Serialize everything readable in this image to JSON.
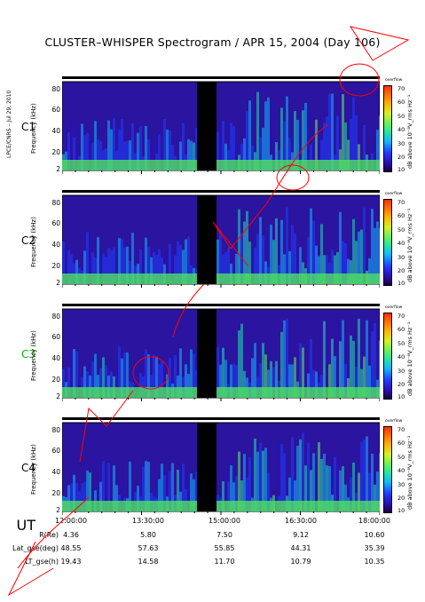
{
  "title": "CLUSTER–WHISPER Spectrogram / APR 15, 2004 (Day 106)",
  "side_note": "LPCE/CNRS – Jul 29, 2010",
  "colorbar": {
    "over_label": "overflow",
    "ticks": [
      "70",
      "60",
      "50",
      "40",
      "30",
      "20",
      "10"
    ],
    "label": "dB above 10⁻⁸V_rms Hz⁻¹"
  },
  "panels": [
    {
      "spacecraft": "C1",
      "ylabel": "Frequency (kHz)",
      "yticks": [
        "80",
        "60",
        "40",
        "20",
        "2"
      ],
      "label_color": "#000000"
    },
    {
      "spacecraft": "C2",
      "ylabel": "Frequency (kHz)",
      "yticks": [
        "80",
        "60",
        "40",
        "20",
        "2"
      ],
      "label_color": "#000000"
    },
    {
      "spacecraft": "C3",
      "ylabel": "Frequency (kHz)",
      "yticks": [
        "80",
        "60",
        "40",
        "20",
        "2"
      ],
      "label_color": "#00b000"
    },
    {
      "spacecraft": "C4",
      "ylabel": "Frequency (kHz)",
      "yticks": [
        "80",
        "60",
        "40",
        "20",
        "2"
      ],
      "label_color": "#000000"
    }
  ],
  "ephemeris": {
    "ut_label": "UT",
    "rows": [
      {
        "label": "R(Re)",
        "values": [
          "4.36",
          "5.80",
          "7.50",
          "9.12",
          "10.60"
        ]
      },
      {
        "label": "Lat_gse(deg)",
        "values": [
          "48.55",
          "57.63",
          "55.85",
          "44.31",
          "35.39"
        ]
      },
      {
        "label": "LT_gse(h)",
        "values": [
          "19.43",
          "14.58",
          "11.70",
          "10.79",
          "10.35"
        ]
      }
    ]
  },
  "chart_data": {
    "type": "heatmap",
    "title": "CLUSTER–WHISPER Spectrogram / APR 15, 2004 (Day 106)",
    "x": [
      "12:00:00",
      "13:30:00",
      "15:00:00",
      "16:30:00",
      "18:00:00"
    ],
    "xlabel": "UT",
    "ylabel": "Frequency (kHz)",
    "ylim": [
      2,
      80
    ],
    "yticks": [
      2,
      20,
      40,
      60,
      80
    ],
    "colorbar_range": [
      10,
      70
    ],
    "colorbar_label": "dB above 10⁻⁸V_rms Hz⁻¹",
    "series": [
      {
        "name": "C1"
      },
      {
        "name": "C2"
      },
      {
        "name": "C3"
      },
      {
        "name": "C4"
      }
    ],
    "data_gap": [
      "14:45:00",
      "15:15:00"
    ]
  },
  "watermark": {
    "color": "#ff0000"
  }
}
